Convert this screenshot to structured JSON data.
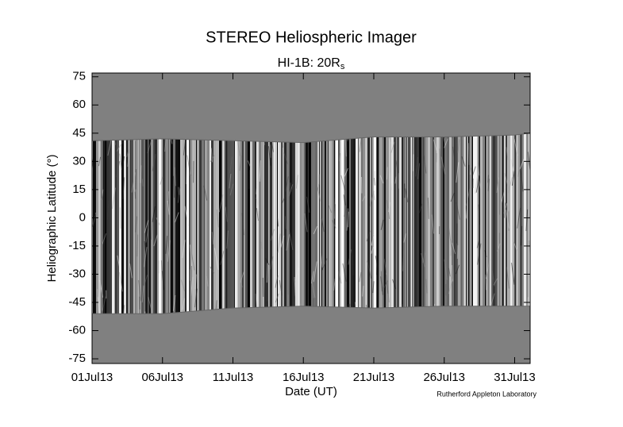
{
  "chart_data": {
    "type": "jmap",
    "title": "STEREO Heliospheric Imager",
    "subtitle": "HI-1B: 20R",
    "subtitle_subscript": "s",
    "xlabel": "Date (UT)",
    "ylabel": "Heliographic Latitude (°)",
    "credit": "Rutherford Appleton Laboratory",
    "xlim": [
      1,
      32.1
    ],
    "xticks": [
      {
        "value": 1,
        "label": "01Jul13"
      },
      {
        "value": 6,
        "label": "06Jul13"
      },
      {
        "value": 11,
        "label": "11Jul13"
      },
      {
        "value": 16,
        "label": "16Jul13"
      },
      {
        "value": 21,
        "label": "21Jul13"
      },
      {
        "value": 26,
        "label": "26Jul13"
      },
      {
        "value": 31,
        "label": "31Jul13"
      }
    ],
    "ylim": [
      -77.5,
      77
    ],
    "yticks": [
      75,
      60,
      45,
      30,
      15,
      0,
      -15,
      -30,
      -45,
      -60,
      -75
    ],
    "x": [
      1,
      6,
      11,
      16,
      21,
      26,
      31,
      32.1
    ],
    "coverage_top": [
      41,
      42,
      41,
      40,
      43,
      43,
      44,
      45
    ],
    "coverage_bottom": [
      -51,
      -51,
      -48,
      -47,
      -48,
      -47,
      -47,
      -47
    ],
    "background_color": "#808080"
  }
}
